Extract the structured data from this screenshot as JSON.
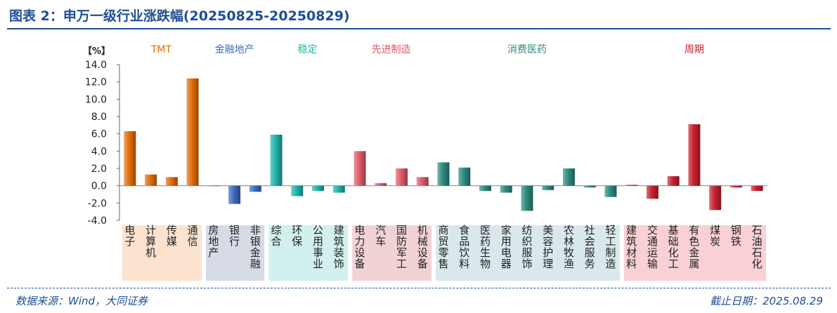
{
  "header": {
    "title": "图表 2：申万一级行业涨跌幅(20250825-20250829)"
  },
  "footer": {
    "source": "数据来源：Wind，大同证券",
    "date": "截止日期：2025.08.29"
  },
  "chart_data": {
    "type": "bar",
    "unit_label": "【%】",
    "ylim": [
      -4.0,
      14.0
    ],
    "y_ticks": [
      "14.0",
      "12.0",
      "10.0",
      "8.0",
      "6.0",
      "4.0",
      "2.0",
      "0.0",
      "-2.0",
      "-4.0"
    ],
    "grid": false,
    "groups": [
      {
        "name": "TMT",
        "color": "#e36c09",
        "bg": "#fbe3d0",
        "categories": [
          "电子",
          "计算机",
          "传媒",
          "通信"
        ],
        "values": [
          6.3,
          1.3,
          1.0,
          12.4
        ]
      },
      {
        "name": "金融地产",
        "color": "#3a6bc4",
        "bg": "#d6dbe6",
        "categories": [
          "房地产",
          "银行",
          "非银金融"
        ],
        "values": [
          0.0,
          -2.1,
          -0.7
        ]
      },
      {
        "name": "稳定",
        "color": "#1fb3a8",
        "bg": "#d2f0ee",
        "categories": [
          "综合",
          "环保",
          "公用事业",
          "建筑装饰"
        ],
        "values": [
          5.9,
          -1.2,
          -0.6,
          -0.8
        ]
      },
      {
        "name": "先进制造",
        "color": "#e05a6a",
        "bg": "#f2d3d5",
        "categories": [
          "电力设备",
          "汽车",
          "国防军工",
          "机械设备"
        ],
        "values": [
          4.0,
          0.3,
          2.0,
          1.0
        ]
      },
      {
        "name": "消费医药",
        "color": "#2e8b7f",
        "bg": "#d9e8ec",
        "categories": [
          "商贸零售",
          "食品饮料",
          "医药生物",
          "家用电器",
          "纺织服饰",
          "美容护理",
          "农林牧渔",
          "社会服务",
          "轻工制造"
        ],
        "values": [
          2.7,
          2.1,
          -0.6,
          -0.8,
          -2.9,
          -0.5,
          2.0,
          -0.2,
          -1.3
        ]
      },
      {
        "name": "周期",
        "color": "#c9202f",
        "bg": "#f9d0d4",
        "categories": [
          "建筑材料",
          "交通运输",
          "基础化工",
          "有色金属",
          "煤炭",
          "钢铁",
          "石油石化"
        ],
        "values": [
          0.1,
          -1.5,
          1.1,
          7.1,
          -2.8,
          -0.2,
          -0.6
        ]
      }
    ]
  }
}
